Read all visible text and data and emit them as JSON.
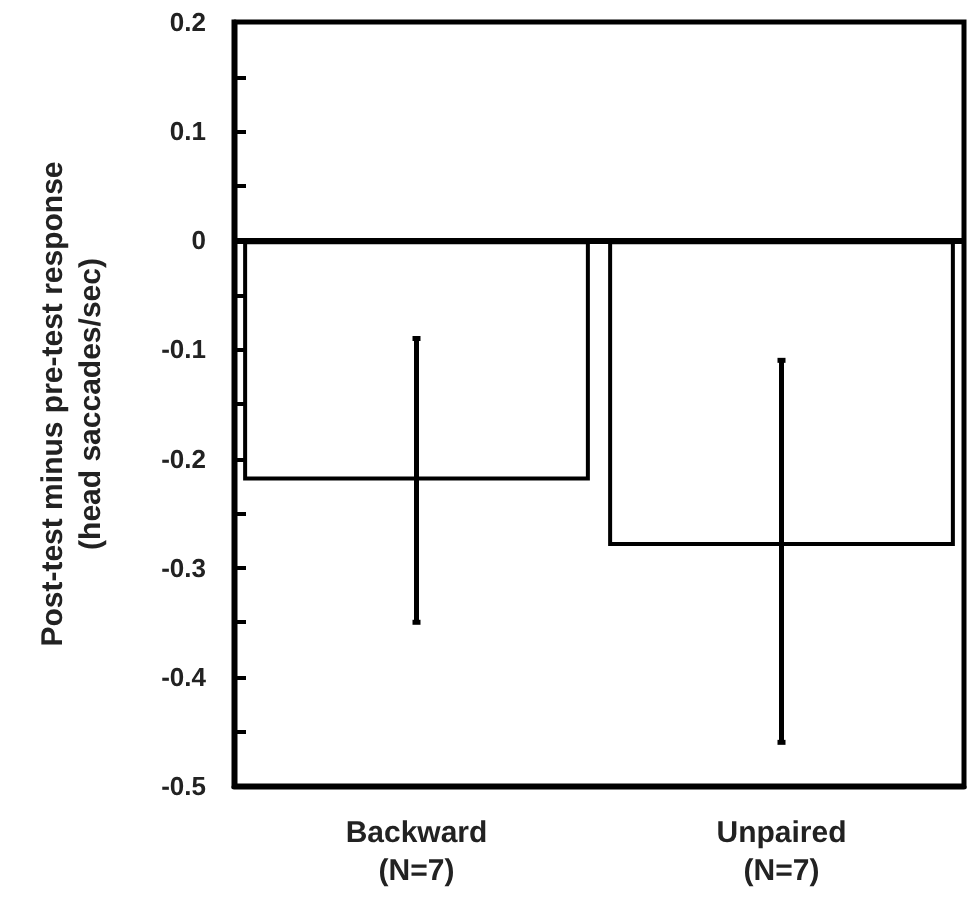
{
  "chart_data": {
    "type": "bar",
    "ylabel": "Post-test minus pre-test response\n(head saccades/sec)",
    "categories": [
      "Backward\n(N=7)",
      "Unpaired\n(N=7)"
    ],
    "values": [
      -0.22,
      -0.28
    ],
    "errors": [
      [
        -0.35,
        -0.09
      ],
      [
        -0.46,
        -0.11
      ]
    ],
    "color": "#ffffff",
    "ylim": [
      -0.5,
      0.2
    ],
    "yticks": [
      0.2,
      {
        "value": 0.15,
        "label": null
      },
      0.1,
      {
        "value": 0.05,
        "label": null
      },
      0,
      {
        "value": -0.05,
        "label": null
      },
      -0.1,
      {
        "value": -0.15,
        "label": null
      },
      -0.2,
      {
        "value": -0.25,
        "label": null
      },
      -0.3,
      {
        "value": -0.35,
        "label": null
      },
      -0.4,
      {
        "value": -0.45,
        "label": null
      },
      -0.5
    ],
    "ref_lines": [
      {
        "axis": "y",
        "value": 0,
        "color": "#000000"
      }
    ],
    "grid": false
  }
}
